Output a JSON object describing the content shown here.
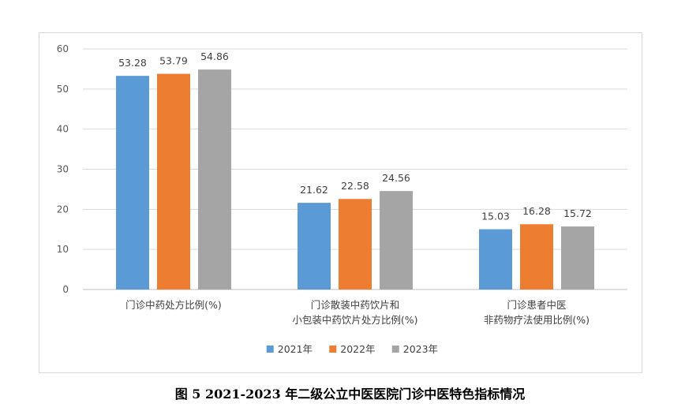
{
  "caption": "图 5 2021-2023 年二级公立中医医院门诊中医特色指标情况",
  "chart_data": {
    "type": "bar",
    "title": "",
    "xlabel": "",
    "ylabel": "",
    "ylim": [
      0,
      60
    ],
    "yticks": [
      0,
      10,
      20,
      30,
      40,
      50,
      60
    ],
    "grid": true,
    "legend_position": "bottom",
    "categories": [
      [
        "门诊中药处方比例(%)"
      ],
      [
        "门诊散装中药饮片和",
        "小包装中药饮片处方比例(%)"
      ],
      [
        "门诊患者中医",
        "非药物疗法使用比例(%)"
      ]
    ],
    "series": [
      {
        "name": "2021年",
        "color": "#5b9bd5",
        "values": [
          53.28,
          21.62,
          15.03
        ]
      },
      {
        "name": "2022年",
        "color": "#ed7d31",
        "values": [
          53.79,
          22.58,
          16.28
        ]
      },
      {
        "name": "2023年",
        "color": "#a5a5a5",
        "values": [
          54.86,
          24.56,
          15.72
        ]
      }
    ]
  }
}
